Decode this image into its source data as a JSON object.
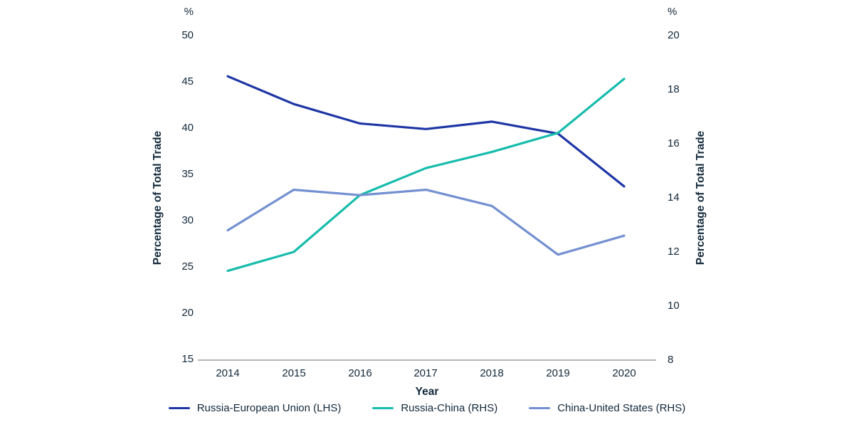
{
  "chart_data": {
    "type": "line",
    "title": "",
    "x": [
      "2014",
      "2015",
      "2016",
      "2017",
      "2018",
      "2019",
      "2020"
    ],
    "xlabel": "Year",
    "grid": false,
    "legend_position": "bottom",
    "left_axis": {
      "unit": "%",
      "label": "Percentage of Total Trade",
      "ticks": [
        "50",
        "45",
        "40",
        "35",
        "30",
        "25",
        "20",
        "15"
      ],
      "ylim": [
        15,
        50
      ]
    },
    "right_axis": {
      "unit": "%",
      "label": "Percentage of Total Trade",
      "ticks": [
        "20",
        "18",
        "16",
        "14",
        "12",
        "10",
        "8"
      ],
      "ylim": [
        8,
        20
      ]
    },
    "series": [
      {
        "name": "Russia-European Union (LHS)",
        "axis": "left",
        "color": "#1e36a4",
        "values": [
          45.6,
          42.6,
          40.5,
          39.9,
          40.7,
          39.4,
          33.7
        ]
      },
      {
        "name": "Russia-China (RHS)",
        "axis": "right",
        "color": "#16bcac",
        "values": [
          11.3,
          12.0,
          14.1,
          15.1,
          15.7,
          16.4,
          18.4
        ]
      },
      {
        "name": "China-United States (RHS)",
        "axis": "right",
        "color": "#7490d0",
        "values": [
          12.8,
          14.3,
          14.1,
          14.3,
          13.7,
          11.9,
          12.6
        ]
      }
    ],
    "colors": {
      "text": "#12283a",
      "axis_line": "#b5b5b5",
      "background": "#ffffff"
    }
  }
}
